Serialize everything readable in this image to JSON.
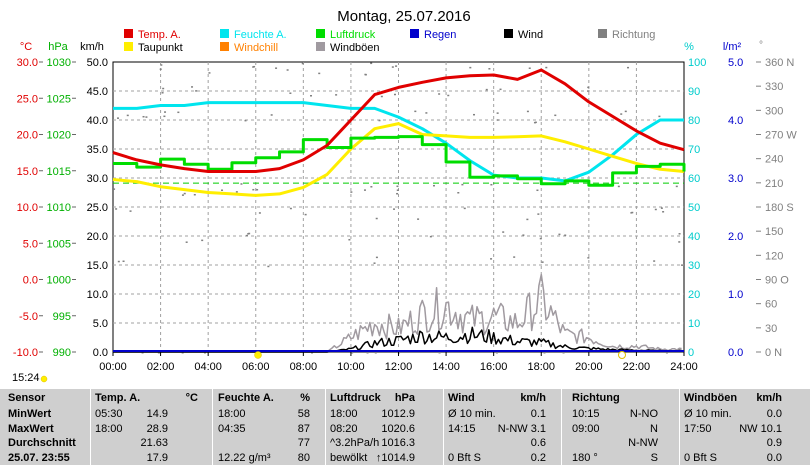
{
  "title": "Montag, 25.07.2016",
  "time_label": "15:24",
  "legend": [
    {
      "label": "Temp. A.",
      "color": "#e00000"
    },
    {
      "label": "Feuchte A.",
      "color": "#00e5ee"
    },
    {
      "label": "Luftdruck",
      "color": "#00dd00"
    },
    {
      "label": "Regen",
      "color": "#0000cc"
    },
    {
      "label": "Wind",
      "color": "#000000"
    },
    {
      "label": "Richtung",
      "color": "#808080"
    },
    {
      "label": "Taupunkt",
      "color": "#ffee00"
    },
    {
      "label": "Windchill",
      "color": "#ff8000"
    },
    {
      "label": "Windböen",
      "color": "#a09aa0"
    }
  ],
  "chart_data": {
    "type": "line",
    "title": "Montag, 25.07.2016",
    "x_ticks": [
      "00:00",
      "02:00",
      "04:00",
      "06:00",
      "08:00",
      "10:00",
      "12:00",
      "14:00",
      "16:00",
      "18:00",
      "20:00",
      "22:00",
      "24:00"
    ],
    "axes": {
      "temp_c": {
        "unit": "°C",
        "ticks": [
          "30.0",
          "25.0",
          "20.0",
          "15.0",
          "10.0",
          "5.0",
          "0.0",
          "-5.0",
          "-10.0"
        ],
        "range": [
          -10,
          30
        ],
        "color": "#e00000"
      },
      "pressure_hpa": {
        "unit": "hPa",
        "ticks": [
          "1030",
          "1025",
          "1020",
          "1015",
          "1010",
          "1005",
          "1000",
          "995",
          "990"
        ],
        "range": [
          990,
          1030
        ],
        "color": "#00b000"
      },
      "wind_kmh": {
        "unit": "km/h",
        "ticks": [
          "50.0",
          "45.0",
          "40.0",
          "35.0",
          "30.0",
          "25.0",
          "20.0",
          "15.0",
          "10.0",
          "5.0",
          "0.0"
        ],
        "range": [
          0,
          50
        ],
        "color": "#000000"
      },
      "humidity_pct": {
        "unit": "%",
        "ticks": [
          "100",
          "90",
          "80",
          "70",
          "60",
          "50",
          "40",
          "30",
          "20",
          "10",
          "0"
        ],
        "range": [
          0,
          100
        ],
        "color": "#00cccc"
      },
      "rain_lm2": {
        "unit": "l/m²",
        "ticks": [
          "5.0",
          "4.0",
          "3.0",
          "2.0",
          "1.0",
          "0.0"
        ],
        "range": [
          0,
          5
        ],
        "color": "#0000cc"
      },
      "direction_deg": {
        "unit": "°",
        "ticks": [
          "360 N",
          "330",
          "300",
          "270 W",
          "240",
          "210",
          "180 S",
          "150",
          "120",
          "90 O",
          "60",
          "30",
          "0 N"
        ],
        "range": [
          0,
          360
        ],
        "color": "#808080"
      }
    },
    "x_hours": [
      0,
      1,
      2,
      3,
      4,
      5,
      6,
      7,
      8,
      9,
      10,
      11,
      12,
      13,
      14,
      15,
      16,
      17,
      18,
      19,
      20,
      21,
      22,
      23,
      24
    ],
    "series": [
      {
        "name": "Temp. A.",
        "axis": "temp_c",
        "color": "#e00000",
        "width": 3,
        "values": [
          17.5,
          16.5,
          15.8,
          15.3,
          14.9,
          14.9,
          14.9,
          15.3,
          16.5,
          18.5,
          22.0,
          25.5,
          26.5,
          27.2,
          27.8,
          28.1,
          28.2,
          27.6,
          28.9,
          27.0,
          24.5,
          22.5,
          20.5,
          18.8,
          17.9
        ]
      },
      {
        "name": "Feuchte A.",
        "axis": "humidity_pct",
        "color": "#00e5ee",
        "width": 3,
        "values": [
          84,
          84,
          85,
          85,
          86,
          86,
          86,
          86,
          86,
          85,
          84,
          84,
          81,
          77,
          72,
          66,
          61,
          60,
          60,
          59,
          62,
          68,
          75,
          80,
          80
        ]
      },
      {
        "name": "Luftdruck",
        "axis": "pressure_hpa",
        "color": "#00dd00",
        "width": 3,
        "values": [
          1016.0,
          1015.5,
          1016.6,
          1015.9,
          1015.2,
          1016.1,
          1016.8,
          1017.6,
          1019.3,
          1018.2,
          1019.5,
          1019.6,
          1019.7,
          1018.6,
          1016.2,
          1014.1,
          1014.3,
          1013.9,
          1013.2,
          1013.6,
          1013.0,
          1014.7,
          1015.6,
          1015.9,
          1014.9
        ]
      },
      {
        "name": "Taupunkt",
        "axis": "temp_c",
        "color": "#ffee00",
        "width": 3,
        "values": [
          13.8,
          13.5,
          12.8,
          12.4,
          12.0,
          11.8,
          11.6,
          11.8,
          12.7,
          14.5,
          18.0,
          20.8,
          21.5,
          20.0,
          19.8,
          19.6,
          19.6,
          19.7,
          19.8,
          19.0,
          18.0,
          17.0,
          16.0,
          15.2,
          14.9
        ]
      },
      {
        "name": "Wind",
        "axis": "wind_kmh",
        "color": "#000000",
        "width": 1.5,
        "values": [
          0,
          0,
          0,
          0,
          0,
          0,
          0,
          0,
          0,
          0,
          0.5,
          1.5,
          2.0,
          2.8,
          2.5,
          3.0,
          2.5,
          1.8,
          1.6,
          0.9,
          0.6,
          0.4,
          0.3,
          0.2,
          0.2
        ]
      },
      {
        "name": "Windböen",
        "axis": "wind_kmh",
        "color": "#a09aa0",
        "width": 1.5,
        "values": [
          0,
          0,
          0,
          0,
          0,
          0,
          0,
          0,
          0,
          0,
          2.5,
          5.0,
          4.0,
          6.5,
          8.0,
          5.5,
          6.0,
          5.0,
          9.0,
          3.0,
          2.5,
          1.0,
          1.0,
          0.5,
          0.5
        ]
      }
    ],
    "reference_lines": [
      {
        "axis": "temp_c",
        "value": 13.3,
        "color": "#00cc00",
        "style": "dashed"
      }
    ],
    "grid": true
  },
  "stats": {
    "headers": [
      "Sensor",
      "Temp. A.",
      "°C",
      "Feuchte A.",
      "%",
      "Luftdruck",
      "hPa",
      "Wind",
      "km/h",
      "Richtung",
      "Windböen",
      "km/h"
    ],
    "rows": [
      [
        "MinWert",
        "05:30",
        "14.9",
        "18:00",
        "58",
        "18:00",
        "1012.9",
        "Ø 10 min.",
        "0.1",
        "10:15",
        "N-NO",
        "Ø 10 min.",
        "0.0"
      ],
      [
        "MaxWert",
        "18:00",
        "28.9",
        "04:35",
        "87",
        "08:20",
        "1020.6",
        "14:15",
        "N-NW 3.1",
        "09:00",
        "N",
        "17:50",
        "NW 10.1"
      ],
      [
        "Durchschnitt",
        "",
        "21.63",
        "",
        "77",
        "^3.2hPa/h",
        "1016.3",
        "",
        "0.6",
        "",
        "N-NW",
        "",
        "0.9"
      ],
      [
        "25.07. 23:55",
        "",
        "17.9",
        "12.22 g/m³",
        "80",
        "bewölkt",
        "↑1014.9",
        "0 Bft S",
        "0.2",
        "180 °",
        "S",
        "0 Bft S",
        "0.0"
      ]
    ]
  }
}
